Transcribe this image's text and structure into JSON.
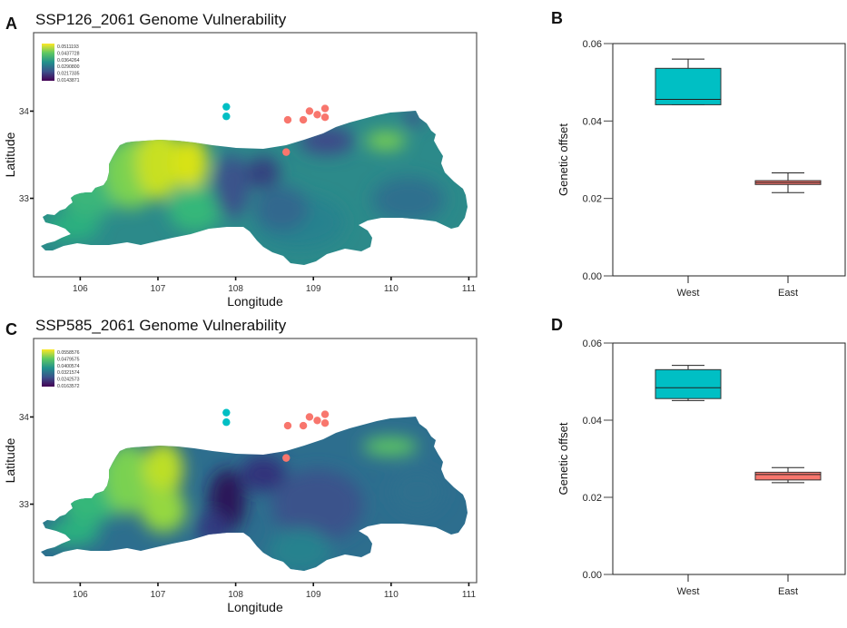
{
  "panels": {
    "A": {
      "letter": "A",
      "title": "SSP126_2061 Genome Vulnerability"
    },
    "B": {
      "letter": "B"
    },
    "C": {
      "letter": "C",
      "title": "SSP585_2061 Genome Vulnerability"
    },
    "D": {
      "letter": "D"
    }
  },
  "colors": {
    "west": "#00bfc4",
    "east": "#f8766d",
    "viridis": [
      "#fde725",
      "#5ec962",
      "#21918c",
      "#3b528b",
      "#440154"
    ]
  },
  "chart_data": [
    {
      "id": "A",
      "type": "heatmap",
      "title": "SSP126_2061 Genome Vulnerability",
      "xlabel": "Longitude",
      "ylabel": "Latitude",
      "xlim": [
        105.4,
        111.1
      ],
      "ylim": [
        32.1,
        34.9
      ],
      "xticks": [
        "106",
        "107",
        "108",
        "109",
        "110",
        "111"
      ],
      "yticks": [
        "33",
        "34"
      ],
      "legend": {
        "position": "top-left",
        "labels": [
          "0.0511193",
          "0.0437728",
          "0.0364264",
          "0.0290800",
          "0.0217335",
          "0.0143871"
        ]
      },
      "points": [
        {
          "group": "West",
          "lon": 107.88,
          "lat": 34.05
        },
        {
          "group": "West",
          "lon": 107.88,
          "lat": 33.94
        },
        {
          "group": "East",
          "lon": 108.67,
          "lat": 33.9
        },
        {
          "group": "East",
          "lon": 108.87,
          "lat": 33.9
        },
        {
          "group": "East",
          "lon": 108.95,
          "lat": 34.0
        },
        {
          "group": "East",
          "lon": 109.05,
          "lat": 33.96
        },
        {
          "group": "East",
          "lon": 109.15,
          "lat": 34.03
        },
        {
          "group": "East",
          "lon": 109.15,
          "lat": 33.93
        },
        {
          "group": "East",
          "lon": 108.65,
          "lat": 33.53
        }
      ]
    },
    {
      "id": "B",
      "type": "box",
      "ylabel": "Genetic offset",
      "xlabel": "",
      "categories": [
        "West",
        "East"
      ],
      "ylim": [
        0,
        0.06
      ],
      "yticks": [
        "0.00",
        "0.02",
        "0.04",
        "0.06"
      ],
      "boxes": [
        {
          "name": "West",
          "min": 0.0442,
          "q1": 0.0442,
          "median": 0.0456,
          "q3": 0.0536,
          "max": 0.056
        },
        {
          "name": "East",
          "min": 0.0215,
          "q1": 0.0236,
          "median": 0.0241,
          "q3": 0.0246,
          "max": 0.0266
        }
      ]
    },
    {
      "id": "C",
      "type": "heatmap",
      "title": "SSP585_2061 Genome Vulnerability",
      "xlabel": "Longitude",
      "ylabel": "Latitude",
      "xlim": [
        105.4,
        111.1
      ],
      "ylim": [
        32.1,
        34.9
      ],
      "xticks": [
        "106",
        "107",
        "108",
        "109",
        "110",
        "111"
      ],
      "yticks": [
        "33",
        "34"
      ],
      "legend": {
        "position": "top-left",
        "labels": [
          "0.0558576",
          "0.0479575",
          "0.0400574",
          "0.0321574",
          "0.0242573",
          "0.0163572"
        ]
      },
      "points": [
        {
          "group": "West",
          "lon": 107.88,
          "lat": 34.05
        },
        {
          "group": "West",
          "lon": 107.88,
          "lat": 33.94
        },
        {
          "group": "East",
          "lon": 108.67,
          "lat": 33.9
        },
        {
          "group": "East",
          "lon": 108.87,
          "lat": 33.9
        },
        {
          "group": "East",
          "lon": 108.95,
          "lat": 34.0
        },
        {
          "group": "East",
          "lon": 109.05,
          "lat": 33.96
        },
        {
          "group": "East",
          "lon": 109.15,
          "lat": 34.03
        },
        {
          "group": "East",
          "lon": 109.15,
          "lat": 33.93
        },
        {
          "group": "East",
          "lon": 108.65,
          "lat": 33.53
        }
      ]
    },
    {
      "id": "D",
      "type": "box",
      "ylabel": "Genetic offset",
      "xlabel": "",
      "categories": [
        "West",
        "East"
      ],
      "ylim": [
        0,
        0.06
      ],
      "yticks": [
        "0.00",
        "0.02",
        "0.04",
        "0.06"
      ],
      "boxes": [
        {
          "name": "West",
          "min": 0.0451,
          "q1": 0.0456,
          "median": 0.0484,
          "q3": 0.0531,
          "max": 0.0542
        },
        {
          "name": "East",
          "min": 0.0238,
          "q1": 0.0245,
          "median": 0.0259,
          "q3": 0.0265,
          "max": 0.0277
        }
      ]
    }
  ]
}
